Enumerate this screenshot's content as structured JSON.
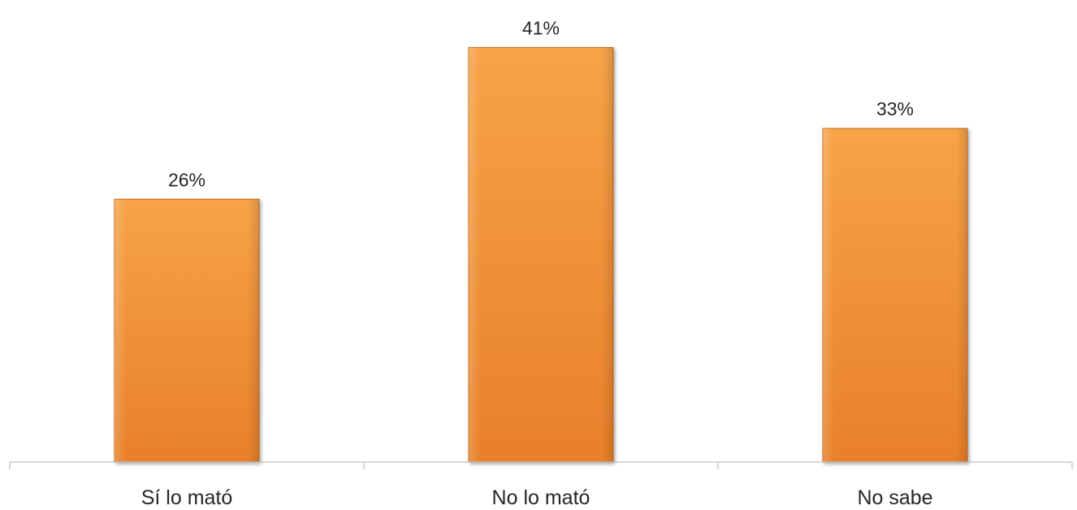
{
  "chart_data": {
    "type": "bar",
    "categories": [
      "Sí lo mató",
      "No lo mató",
      "No sabe"
    ],
    "values": [
      26,
      41,
      33
    ],
    "value_labels": [
      "26%",
      "41%",
      "33%"
    ],
    "unit": "%",
    "ylim": [
      0,
      45
    ],
    "grid": false,
    "legend": "none",
    "colors": {
      "bar_light": "#f7a347",
      "bar_dark": "#e8802a",
      "bar_edge": "#c96a1c",
      "axis": "#bfbfbf",
      "text": "#262626"
    }
  }
}
